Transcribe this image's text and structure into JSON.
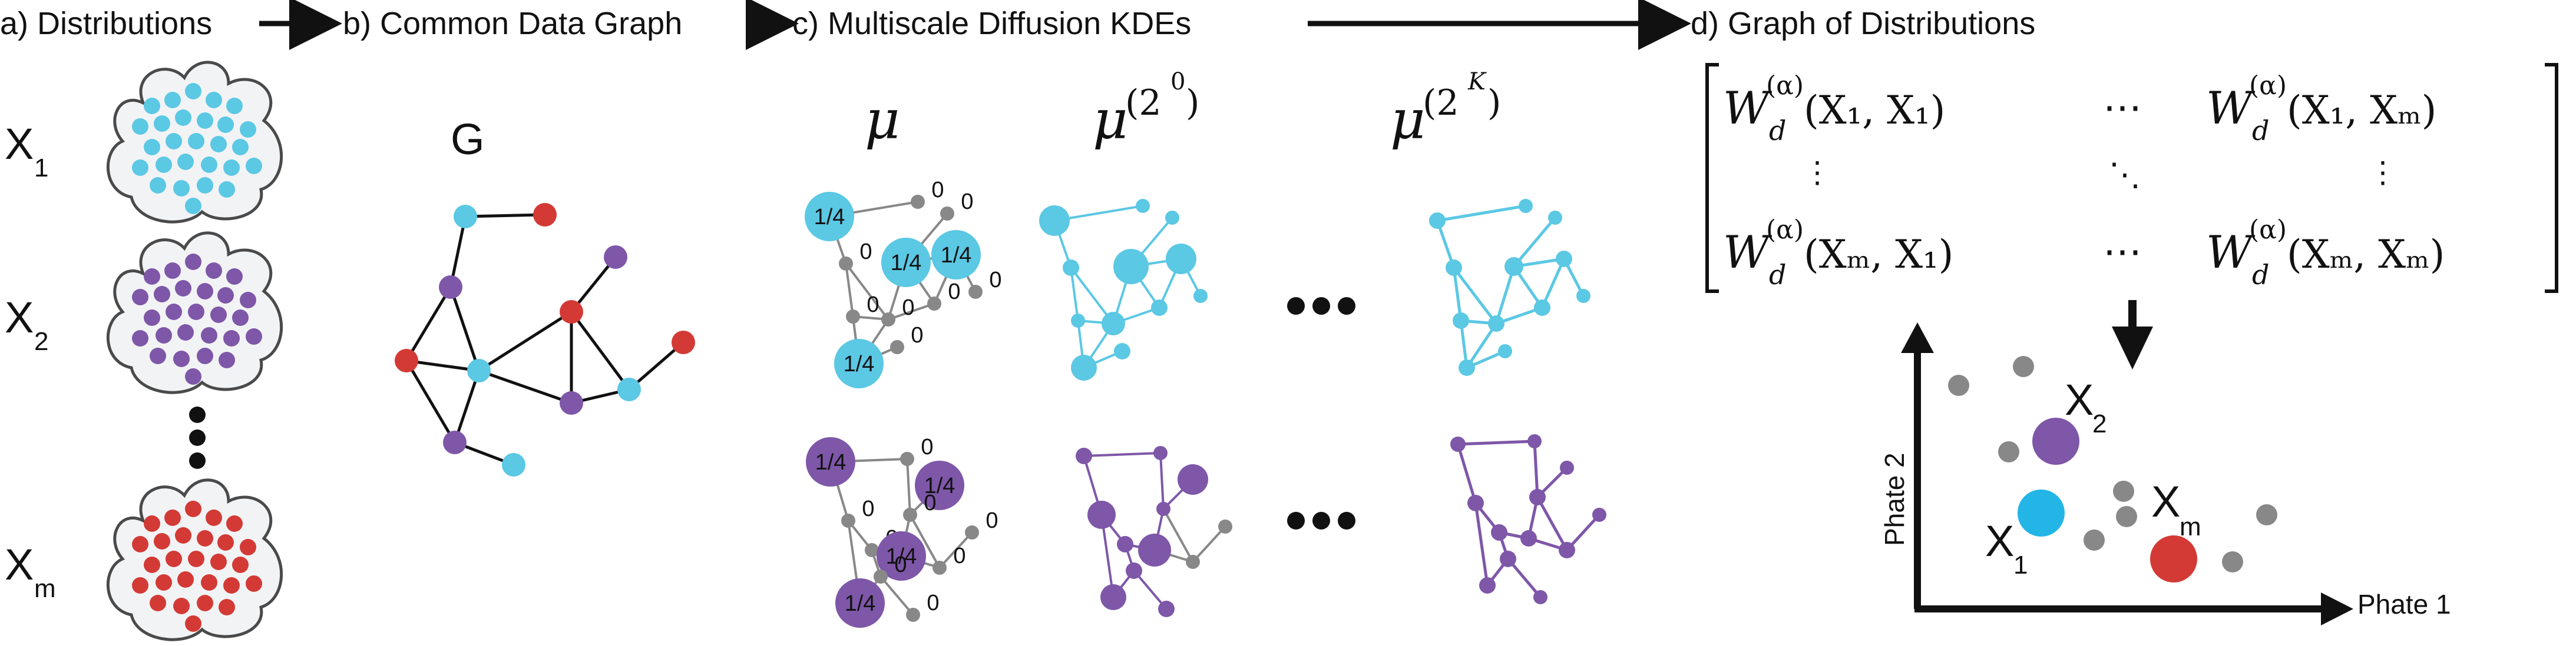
{
  "titles": {
    "a": "a) Distributions",
    "b": "b) Common Data Graph",
    "c": "c) Multiscale Diffusion KDEs",
    "d": "d) Graph of Distributions"
  },
  "distributions": [
    {
      "main": "X",
      "sub": "1",
      "color": "#5bc8e4"
    },
    {
      "main": "X",
      "sub": "2",
      "color": "#7e57a8"
    },
    {
      "main": "X",
      "sub": "m",
      "color": "#d33a35"
    }
  ],
  "graph_label": "G",
  "colors": {
    "cyan": "#5bc8e4",
    "purple": "#7e57a8",
    "red": "#d33a35",
    "gray": "#888888",
    "blob_fill": "#f2f3f5",
    "blob_stroke": "#4a4a4a"
  },
  "kde": {
    "mu": "μ",
    "mu_scale_0": "μ",
    "scale_0_base": "(2",
    "scale_0_exp": "0",
    "mu_scale_K": "μ",
    "scale_K_base": "(2",
    "scale_K_exp": "K",
    "close_paren": ")",
    "weight_nonzero": "1/4",
    "weight_zero": "0"
  },
  "matrix": {
    "W": "W",
    "sub": "d",
    "sup": "(α)",
    "e11": "(X₁, X₁)",
    "e1m": "(X₁, Xₘ)",
    "em1": "(Xₘ, X₁)",
    "emm": "(Xₘ, Xₘ)",
    "hdots": "⋯",
    "vdots": "⋮",
    "ddots": "⋱"
  },
  "embedding": {
    "xlabel": "Phate 1",
    "ylabel": "Phate 2",
    "points": [
      {
        "main": "X",
        "sub": "2",
        "color": "#7e57a8"
      },
      {
        "main": "X",
        "sub": "1",
        "color": "#22b5e6"
      },
      {
        "main": "X",
        "sub": "m",
        "color": "#d33a35"
      }
    ]
  }
}
